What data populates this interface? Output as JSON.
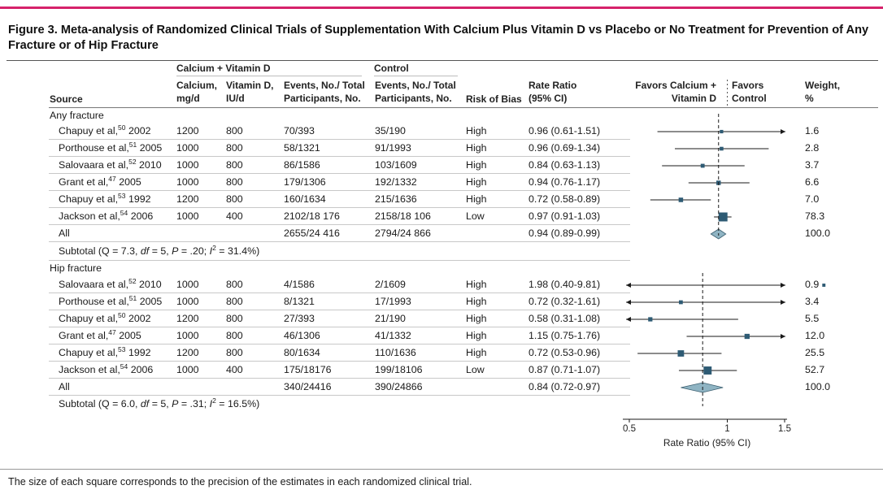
{
  "figure": {
    "title": "Figure 3. Meta-analysis of Randomized Clinical Trials of Supplementation With Calcium Plus Vitamin D vs Placebo or No Treatment for Prevention of Any Fracture or of Hip Fracture",
    "caption": "The size of each square corresponds to the precision of the estimates in each randomized clinical trial."
  },
  "header": {
    "group_treat": "Calcium + Vitamin D",
    "group_control": "Control",
    "source": "Source",
    "calcium_1": "Calcium,",
    "calcium_2": "mg/d",
    "vitd_1": "Vitamin D,",
    "vitd_2": "IU/d",
    "events_1": "Events, No./ Total",
    "events_2": "Participants, No.",
    "cevents_1": "Events, No./ Total",
    "cevents_2": "Participants, No.",
    "bias": "Risk of Bias",
    "rr_1": "Rate Ratio",
    "rr_2": "(95% CI)",
    "favors_treat_1": "Favors Calcium +",
    "favors_treat_2": "Vitamin D",
    "favors_control_1": "Favors",
    "favors_control_2": "Control",
    "weight_1": "Weight,",
    "weight_2": "%"
  },
  "sections": [
    {
      "label": "Any fracture",
      "rows": [
        {
          "author": "Chapuy et al,",
          "ref": "50",
          "year": "2002",
          "calcium": "1200",
          "vitd": "800",
          "events": "70/393",
          "cevents": "35/190",
          "bias": "High",
          "rr_text": "0.96 (0.61-1.51)",
          "weight": "1.6"
        },
        {
          "author": "Porthouse et al,",
          "ref": "51",
          "year": "2005",
          "calcium": "1000",
          "vitd": "800",
          "events": "58/1321",
          "cevents": "91/1993",
          "bias": "High",
          "rr_text": "0.96 (0.69-1.34)",
          "weight": "2.8"
        },
        {
          "author": "Salovaara et al,",
          "ref": "52",
          "year": "2010",
          "calcium": "1000",
          "vitd": "800",
          "events": "86/1586",
          "cevents": "103/1609",
          "bias": "High",
          "rr_text": "0.84 (0.63-1.13)",
          "weight": "3.7"
        },
        {
          "author": "Grant et al,",
          "ref": "47",
          "year": "2005",
          "calcium": "1000",
          "vitd": "800",
          "events": "179/1306",
          "cevents": "192/1332",
          "bias": "High",
          "rr_text": "0.94 (0.76-1.17)",
          "weight": "6.6"
        },
        {
          "author": "Chapuy et al,",
          "ref": "53",
          "year": "1992",
          "calcium": "1200",
          "vitd": "800",
          "events": "160/1634",
          "cevents": "215/1636",
          "bias": "High",
          "rr_text": "0.72 (0.58-0.89)",
          "weight": "7.0"
        },
        {
          "author": "Jackson et al,",
          "ref": "54",
          "year": "2006",
          "calcium": "1000",
          "vitd": "400",
          "events": "2102/18 176",
          "cevents": "2158/18 106",
          "bias": "Low",
          "rr_text": "0.97 (0.91-1.03)",
          "weight": "78.3"
        }
      ],
      "all": {
        "label": "All",
        "events": "2655/24 416",
        "cevents": "2794/24 866",
        "rr_text": "0.94 (0.89-0.99)",
        "weight": "100.0"
      },
      "subtotal": {
        "prefix": "Subtotal (Q = 7.3, ",
        "df": "df",
        "df_val": " = 5, ",
        "p": "P",
        "p_val": " = .20; ",
        "i2": "I",
        "i2_sup": "2",
        "i2_val": " = 31.4%)"
      }
    },
    {
      "label": "Hip fracture",
      "rows": [
        {
          "author": "Salovaara et al,",
          "ref": "52",
          "year": "2010",
          "calcium": "1000",
          "vitd": "800",
          "events": "4/1586",
          "cevents": "2/1609",
          "bias": "High",
          "rr_text": "1.98 (0.40-9.81)",
          "weight": "0.9"
        },
        {
          "author": "Porthouse et al,",
          "ref": "51",
          "year": "2005",
          "calcium": "1000",
          "vitd": "800",
          "events": "8/1321",
          "cevents": "17/1993",
          "bias": "High",
          "rr_text": "0.72 (0.32-1.61)",
          "weight": "3.4"
        },
        {
          "author": "Chapuy et al,",
          "ref": "50",
          "year": "2002",
          "calcium": "1200",
          "vitd": "800",
          "events": "27/393",
          "cevents": "21/190",
          "bias": "High",
          "rr_text": "0.58 (0.31-1.08)",
          "weight": "5.5"
        },
        {
          "author": "Grant et al,",
          "ref": "47",
          "year": "2005",
          "calcium": "1000",
          "vitd": "800",
          "events": "46/1306",
          "cevents": "41/1332",
          "bias": "High",
          "rr_text": "1.15 (0.75-1.76)",
          "weight": "12.0"
        },
        {
          "author": "Chapuy et al,",
          "ref": "53",
          "year": "1992",
          "calcium": "1200",
          "vitd": "800",
          "events": "80/1634",
          "cevents": "110/1636",
          "bias": "High",
          "rr_text": "0.72 (0.53-0.96)",
          "weight": "25.5"
        },
        {
          "author": "Jackson et al,",
          "ref": "54",
          "year": "2006",
          "calcium": "1000",
          "vitd": "400",
          "events": "175/18176",
          "cevents": "199/18106",
          "bias": "Low",
          "rr_text": "0.87 (0.71-1.07)",
          "weight": "52.7"
        }
      ],
      "all": {
        "label": "All",
        "events": "340/24416",
        "cevents": "390/24866",
        "rr_text": "0.84 (0.72-0.97)",
        "weight": "100.0"
      },
      "subtotal": {
        "prefix": "Subtotal (Q = 6.0, ",
        "df": "df",
        "df_val": " = 5, ",
        "p": "P",
        "p_val": " = .31; ",
        "i2": "I",
        "i2_sup": "2",
        "i2_val": " = 16.5%)"
      }
    }
  ],
  "chart_data": {
    "type": "forest",
    "xlabel": "Rate Ratio (95% CI)",
    "scale": "log",
    "xlim": [
      0.5,
      1.5
    ],
    "ticks": [
      0.5,
      1,
      1.5
    ],
    "tick_labels": [
      "0.5",
      "1",
      "1.5"
    ],
    "reference_line": 1,
    "series": [
      {
        "name": "Any fracture",
        "studies": [
          {
            "rr": 0.96,
            "lo": 0.61,
            "hi": 1.51,
            "weight": 1.6
          },
          {
            "rr": 0.96,
            "lo": 0.69,
            "hi": 1.34,
            "weight": 2.8
          },
          {
            "rr": 0.84,
            "lo": 0.63,
            "hi": 1.13,
            "weight": 3.7
          },
          {
            "rr": 0.94,
            "lo": 0.76,
            "hi": 1.17,
            "weight": 6.6
          },
          {
            "rr": 0.72,
            "lo": 0.58,
            "hi": 0.89,
            "weight": 7.0
          },
          {
            "rr": 0.97,
            "lo": 0.91,
            "hi": 1.03,
            "weight": 78.3
          }
        ],
        "pooled": {
          "rr": 0.94,
          "lo": 0.89,
          "hi": 0.99
        }
      },
      {
        "name": "Hip fracture",
        "studies": [
          {
            "rr": 1.98,
            "lo": 0.4,
            "hi": 9.81,
            "weight": 0.9
          },
          {
            "rr": 0.72,
            "lo": 0.32,
            "hi": 1.61,
            "weight": 3.4
          },
          {
            "rr": 0.58,
            "lo": 0.31,
            "hi": 1.08,
            "weight": 5.5
          },
          {
            "rr": 1.15,
            "lo": 0.75,
            "hi": 1.76,
            "weight": 12.0
          },
          {
            "rr": 0.72,
            "lo": 0.53,
            "hi": 0.96,
            "weight": 25.5
          },
          {
            "rr": 0.87,
            "lo": 0.71,
            "hi": 1.07,
            "weight": 52.7
          }
        ],
        "pooled": {
          "rr": 0.84,
          "lo": 0.72,
          "hi": 0.97
        }
      }
    ],
    "colors": {
      "marker": "#2e5b74",
      "diamond": "#8fb4c3",
      "diamond_stroke": "#3b5f70",
      "line": "#1a1a1a"
    }
  }
}
